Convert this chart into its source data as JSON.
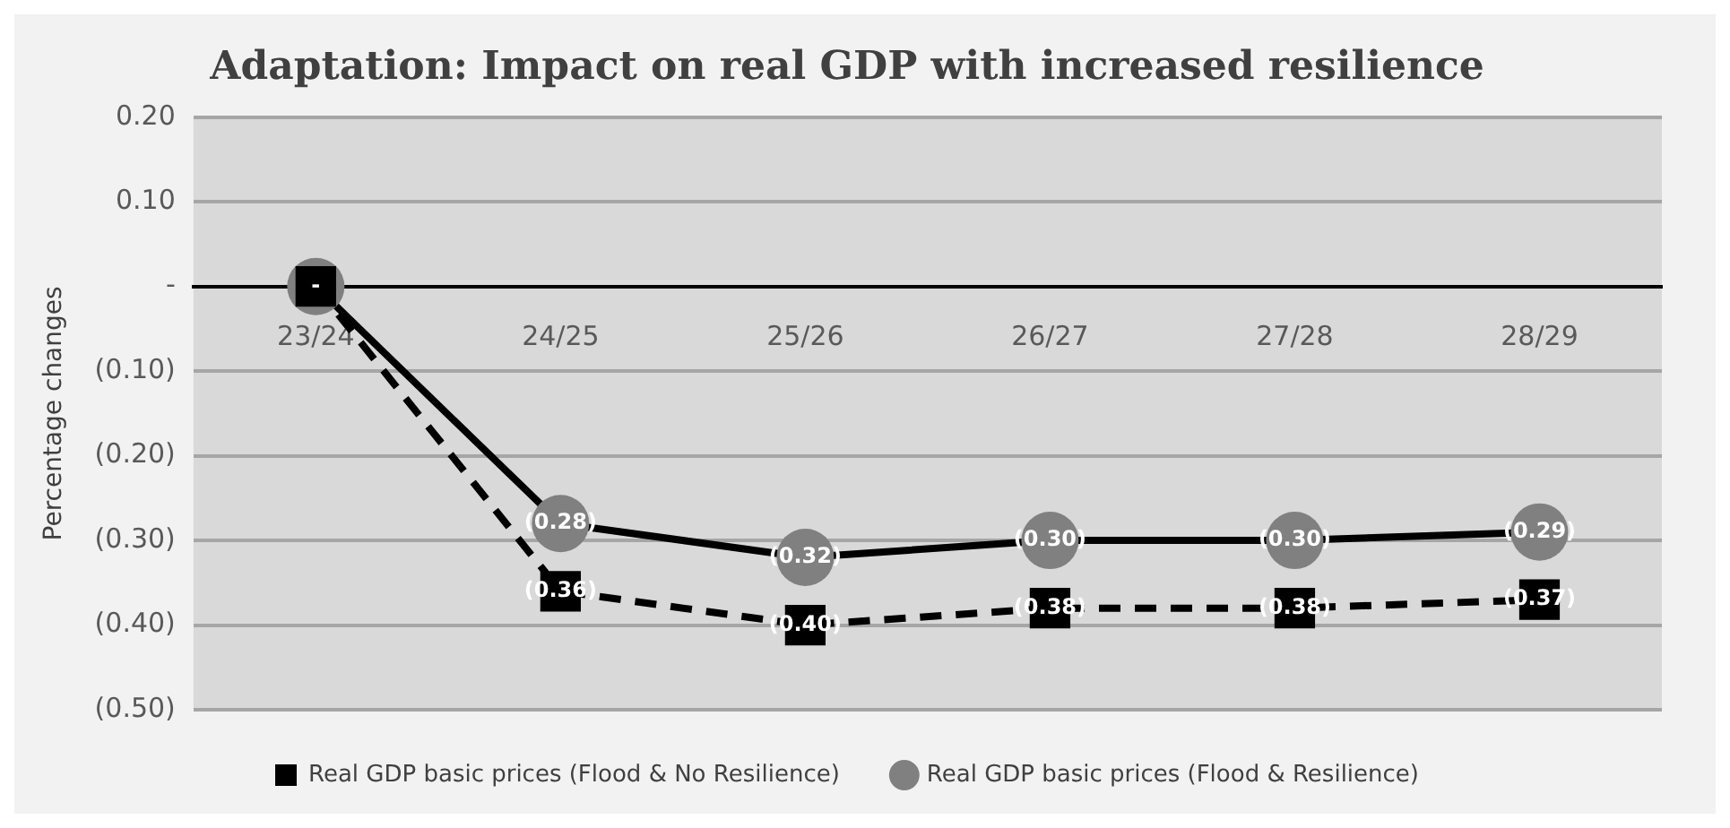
{
  "chart_data": {
    "type": "line",
    "title": "Adaptation: Impact on real GDP with increased resilience",
    "ylabel": "Percentage changes",
    "categories": [
      "23/24",
      "24/25",
      "25/26",
      "26/27",
      "27/28",
      "28/29"
    ],
    "series": [
      {
        "name": "Real GDP basic prices (Flood & No Resilience)",
        "color": "#000000",
        "marker": "square",
        "line_style": "dashed",
        "values": [
          0,
          -0.36,
          -0.4,
          -0.38,
          -0.38,
          -0.37
        ],
        "value_labels": [
          null,
          "(0.36)",
          "(0.40)",
          "(0.38)",
          "(0.38)",
          "(0.37)"
        ]
      },
      {
        "name": "Real GDP basic prices (Flood & Resilience)",
        "color": "#808080",
        "marker": "circle",
        "line_style": "solid",
        "values": [
          0,
          -0.28,
          -0.32,
          -0.3,
          -0.3,
          -0.29
        ],
        "value_labels": [
          "-",
          "(0.28)",
          "(0.32)",
          "(0.30)",
          "(0.30)",
          "(0.29)"
        ]
      }
    ],
    "ylim": [
      -0.5,
      0.2
    ],
    "yticks": [
      {
        "value": 0.2,
        "label": "0.20"
      },
      {
        "value": 0.1,
        "label": "0.10"
      },
      {
        "value": 0,
        "label": "-"
      },
      {
        "value": -0.1,
        "label": "(0.10)"
      },
      {
        "value": -0.2,
        "label": "(0.20)"
      },
      {
        "value": -0.3,
        "label": "(0.30)"
      },
      {
        "value": -0.4,
        "label": "(0.40)"
      },
      {
        "value": -0.5,
        "label": "(0.50)"
      }
    ],
    "grid": "y",
    "legend": "bottom"
  }
}
